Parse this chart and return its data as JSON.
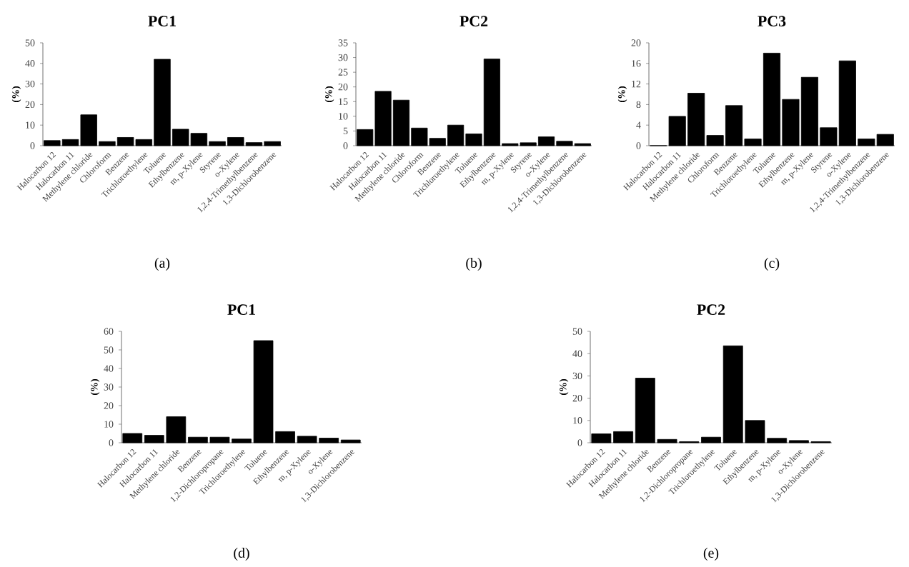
{
  "chart_data": [
    {
      "type": "bar",
      "title": "PC1",
      "ylabel": "(%)",
      "categories": [
        "Halocarbon 12",
        "Halocarbon 11",
        "Methylene chloride",
        "Chloroform",
        "Benzene",
        "Trichloroethylene",
        "Toluene",
        "Ethylbenzene",
        "m, p-Xylene",
        "Styrene",
        "o-Xylene",
        "1,2,4-Trimethylbenzene",
        "1,3-Dichlorobenzene"
      ],
      "values": [
        2.5,
        3,
        15,
        2,
        4,
        3,
        42,
        8,
        6,
        2,
        4,
        1.5,
        2
      ],
      "color": "#000000",
      "ylim": [
        0,
        50
      ],
      "yticks": [
        0,
        10,
        20,
        30,
        40,
        50
      ],
      "annotations": [
        "(a)"
      ]
    },
    {
      "type": "bar",
      "title": "PC2",
      "ylabel": "(%)",
      "categories": [
        "Halocarbon 12",
        "Halocarbon 11",
        "Methylene chloride",
        "Chloroform",
        "Benzene",
        "Trichloroethylene",
        "Toluene",
        "Ethylbenzene",
        "m, p-Xylene",
        "Styrene",
        "o-Xylene",
        "1,2,4-Trimethylbenzene",
        "1,3-Dichlorobenzene"
      ],
      "values": [
        5.5,
        18.5,
        15.5,
        6,
        2.5,
        7,
        4,
        29.5,
        0.7,
        1,
        3,
        1.5,
        0.7
      ],
      "color": "#000000",
      "ylim": [
        0,
        35
      ],
      "yticks": [
        0,
        5,
        10,
        15,
        20,
        25,
        30,
        35
      ],
      "annotations": [
        "(b)"
      ]
    },
    {
      "type": "bar",
      "title": "PC3",
      "ylabel": "(%)",
      "categories": [
        "Halocarbon 12",
        "Halocarbon 11",
        "Methylene chloride",
        "Chloroform",
        "Benzene",
        "Trichloroethylene",
        "Toluene",
        "Ethylbenzene",
        "m, p-Xylene",
        "Styrene",
        "o-Xylene",
        "1,2,4-Trimethylbenzene",
        "1,3-Dichlorobenzene"
      ],
      "values": [
        0,
        5.7,
        10.2,
        2,
        7.8,
        1.3,
        18,
        9,
        13.3,
        3.5,
        16.5,
        1.3,
        2.2
      ],
      "color": "#000000",
      "ylim": [
        0,
        20
      ],
      "yticks": [
        0,
        4,
        8,
        12,
        16,
        20
      ],
      "annotations": [
        "(c)"
      ]
    },
    {
      "type": "bar",
      "title": "PC1",
      "ylabel": "(%)",
      "categories": [
        "Halocarbon 12",
        "Halocarbon 11",
        "Methylene chloride",
        "Benzene",
        "1,2-Dichloropropane",
        "Trichloroethylene",
        "Toluene",
        "Ethylbenzene",
        "m, p-Xylene",
        "o-Xylene",
        "1,3-Dichlorobenzene"
      ],
      "values": [
        5,
        4,
        14,
        3,
        3,
        2,
        55,
        6,
        3.5,
        2.5,
        1.5
      ],
      "color": "#000000",
      "ylim": [
        0,
        60
      ],
      "yticks": [
        0,
        10,
        20,
        30,
        40,
        50,
        60
      ],
      "annotations": [
        "(d)"
      ]
    },
    {
      "type": "bar",
      "title": "PC2",
      "ylabel": "(%)",
      "categories": [
        "Halocarbon 12",
        "Halocarbon 11",
        "Methylene chloride",
        "Benzene",
        "1,2-Dichloropropane",
        "Trichloroethylene",
        "Toluene",
        "Ethylbenzene",
        "m, p-Xylene",
        "o-Xylene",
        "1,3-Dichlorobenzene"
      ],
      "values": [
        4,
        5,
        29,
        1.5,
        0.5,
        2.5,
        43.5,
        10,
        2,
        1,
        0.5
      ],
      "color": "#000000",
      "ylim": [
        0,
        50
      ],
      "yticks": [
        0,
        10,
        20,
        30,
        40,
        50
      ],
      "annotations": [
        "(e)"
      ]
    }
  ]
}
